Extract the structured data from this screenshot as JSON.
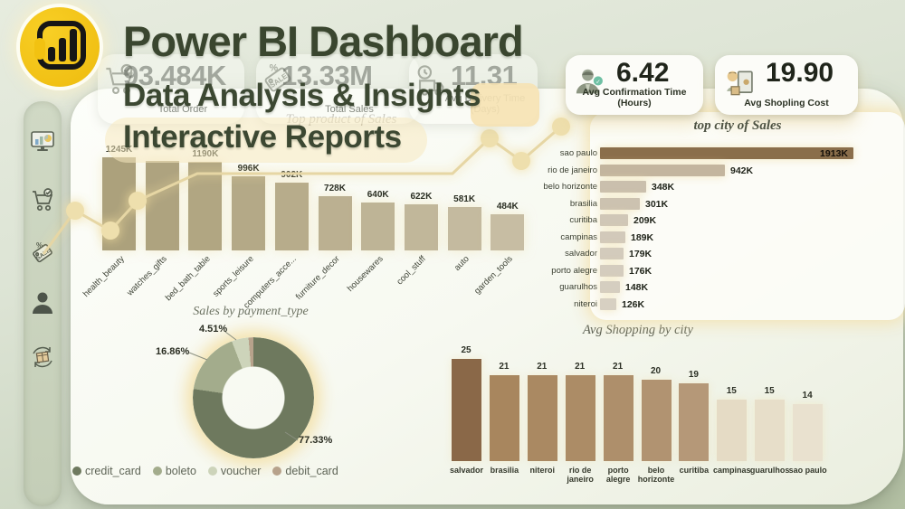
{
  "header": {
    "title": "Power BI Dashboard",
    "subtitle1": "Data Analysis & Insights",
    "subtitle2": "Interactive Reports"
  },
  "logo": {
    "name": "power-bi-logo",
    "color": "#f2c514"
  },
  "sidebar": {
    "items": [
      "dashboard-monitor-icon",
      "cart-check-icon",
      "sale-tag-icon",
      "user-icon",
      "package-return-icon"
    ]
  },
  "kpis": [
    {
      "icon": "cart-check-icon",
      "value": "93.484K",
      "label": "Total Order"
    },
    {
      "icon": "sale-tag-icon",
      "value": "13.33M",
      "label": "Total Sales"
    },
    {
      "icon": "delivery-time-icon",
      "value": "11.31",
      "label": "Avg Delivery Time (Days)"
    },
    {
      "icon": "confirmation-person-icon",
      "value": "6.42",
      "label": "Avg Confirmation Time (Hours)"
    },
    {
      "icon": "shopper-icon",
      "value": "19.90",
      "label": "Avg Shopling Cost"
    }
  ],
  "chart_data": [
    {
      "id": "top_product",
      "type": "bar",
      "title": "Top product of Sales",
      "categories": [
        "health_beauty",
        "watches_gifts",
        "bed_bath_table",
        "sports_leisure",
        "computers_acce...",
        "furniture_decor",
        "housewares",
        "cool_stuff",
        "auto",
        "garden_tools"
      ],
      "values": [
        1245,
        1199,
        1190,
        996,
        902,
        728,
        640,
        622,
        581,
        484
      ],
      "labels": [
        "1245K",
        "",
        "1190K",
        "996K",
        "902K",
        "728K",
        "640K",
        "622K",
        "581K",
        "484K"
      ],
      "colors": [
        "#aca17c",
        "#aea37f",
        "#b1a682",
        "#b4a987",
        "#b7ac8b",
        "#bbb091",
        "#beb496",
        "#c1b79a",
        "#c4ba9f",
        "#c7bda3"
      ],
      "unit": "K",
      "ylim": [
        0,
        1245
      ],
      "grid": false
    },
    {
      "id": "top_city",
      "type": "bar-horizontal",
      "title": "top city of Sales",
      "categories": [
        "sao paulo",
        "rio de janeiro",
        "belo horizonte",
        "brasilia",
        "curitiba",
        "campinas",
        "salvador",
        "porto alegre",
        "guarulhos",
        "niteroi"
      ],
      "values": [
        1913,
        942,
        348,
        301,
        209,
        189,
        179,
        176,
        148,
        126
      ],
      "labels": [
        "1913K",
        "942K",
        "348K",
        "301K",
        "209K",
        "189K",
        "179K",
        "176K",
        "148K",
        "126K"
      ],
      "colors": [
        "#8a6e4b",
        "#c3b59e",
        "#cabfad",
        "#ccc2b0",
        "#d0c7b7",
        "#d2c9ba",
        "#d3cbbc",
        "#d4ccbe",
        "#d5cec0",
        "#d7d0c2"
      ],
      "unit": "K",
      "xlim": [
        0,
        1913
      ],
      "grid": false
    },
    {
      "id": "payment",
      "type": "donut",
      "title": "Sales by payment_type",
      "categories": [
        "credit_card",
        "boleto",
        "voucher",
        "debit_card"
      ],
      "values": [
        77.33,
        16.86,
        4.51,
        1.3
      ],
      "labels": [
        "77.33%",
        "16.86%",
        "4.51%",
        ""
      ],
      "colors": [
        "#6e795e",
        "#a3ac8c",
        "#cdd4ba",
        "#b7a28b"
      ],
      "legend_position": "bottom"
    },
    {
      "id": "avg_city",
      "type": "bar",
      "title": "Avg Shopping by city",
      "categories": [
        "salvador",
        "brasilia",
        "niteroi",
        "rio de janeiro",
        "porto alegre",
        "belo horizonte",
        "curitiba",
        "campinas",
        "guarulhos",
        "sao paulo"
      ],
      "values": [
        25,
        21,
        21,
        21,
        21,
        20,
        19,
        15,
        15,
        14
      ],
      "labels": [
        "25",
        "21",
        "21",
        "21",
        "21",
        "20",
        "19",
        "15",
        "15",
        "14"
      ],
      "colors": [
        "#8a6848",
        "#a8865e",
        "#aa8962",
        "#ac8c66",
        "#ae8f6b",
        "#b19371",
        "#b59878",
        "#e5dbc5",
        "#e7dec9",
        "#e9e1cf"
      ],
      "ylim": [
        0,
        25
      ],
      "grid": false
    }
  ],
  "accent": {
    "glow": "#f0dfae",
    "title_color": "#3a462f"
  }
}
